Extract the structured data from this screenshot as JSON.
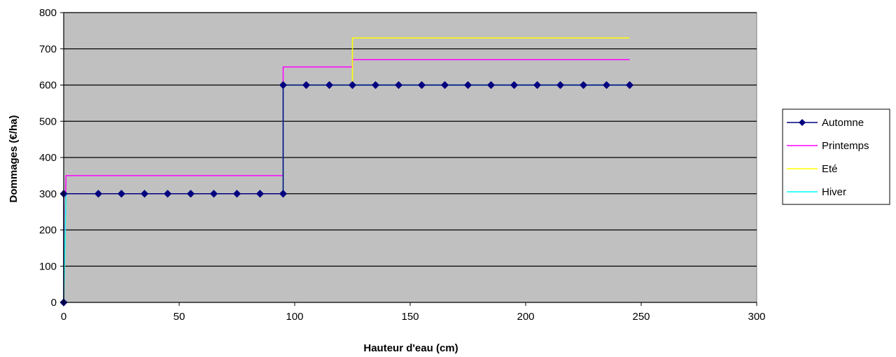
{
  "chart_data": {
    "type": "line",
    "title": "",
    "xlabel": "Hauteur d'eau (cm)",
    "ylabel": "Dommages (€/ha)",
    "xlim": [
      0,
      300
    ],
    "ylim": [
      0,
      800
    ],
    "x_ticks": [
      0,
      50,
      100,
      150,
      200,
      250,
      300
    ],
    "y_ticks": [
      0,
      100,
      200,
      300,
      400,
      500,
      600,
      700,
      800
    ],
    "grid": "horizontal",
    "plot_background": "#c0c0c0",
    "legend_position": "right",
    "series": [
      {
        "name": "Automne",
        "color": "#000080",
        "marker": "diamond",
        "step": true,
        "points": [
          [
            0,
            0
          ],
          [
            0,
            300
          ],
          [
            15,
            300
          ],
          [
            25,
            300
          ],
          [
            35,
            300
          ],
          [
            45,
            300
          ],
          [
            55,
            300
          ],
          [
            65,
            300
          ],
          [
            75,
            300
          ],
          [
            85,
            300
          ],
          [
            95,
            300
          ],
          [
            95,
            600
          ],
          [
            105,
            600
          ],
          [
            115,
            600
          ],
          [
            125,
            600
          ],
          [
            135,
            600
          ],
          [
            145,
            600
          ],
          [
            155,
            600
          ],
          [
            165,
            600
          ],
          [
            175,
            600
          ],
          [
            185,
            600
          ],
          [
            195,
            600
          ],
          [
            205,
            600
          ],
          [
            215,
            600
          ],
          [
            225,
            600
          ],
          [
            235,
            600
          ],
          [
            245,
            600
          ]
        ]
      },
      {
        "name": "Printemps",
        "color": "#ff00ff",
        "marker": "none",
        "step": true,
        "points": [
          [
            0,
            0
          ],
          [
            1,
            350
          ],
          [
            95,
            350
          ],
          [
            95,
            650
          ],
          [
            125,
            650
          ],
          [
            125,
            670
          ],
          [
            245,
            670
          ]
        ]
      },
      {
        "name": "Eté",
        "color": "#ffff00",
        "marker": "none",
        "step": true,
        "points": [
          [
            0,
            0
          ],
          [
            1,
            300
          ],
          [
            95,
            300
          ],
          [
            95,
            600
          ],
          [
            125,
            600
          ],
          [
            125,
            730
          ],
          [
            245,
            730
          ]
        ]
      },
      {
        "name": "Hiver",
        "color": "#00ffff",
        "marker": "none",
        "step": true,
        "points": [
          [
            0,
            0
          ],
          [
            1,
            300
          ],
          [
            95,
            300
          ],
          [
            95,
            600
          ],
          [
            245,
            600
          ]
        ]
      }
    ]
  }
}
